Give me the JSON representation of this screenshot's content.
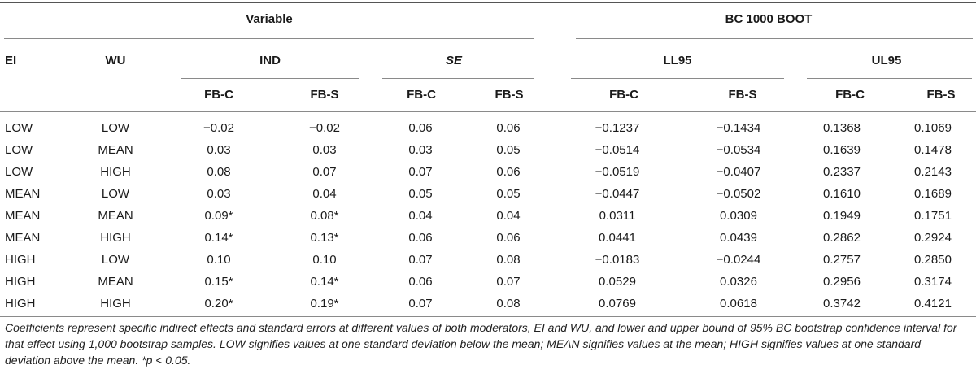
{
  "headers": {
    "variable": "Variable",
    "bc_boot": "BC 1000 BOOT",
    "ei": "EI",
    "wu": "WU",
    "ind": "IND",
    "se": "SE",
    "ll95": "LL95",
    "ul95": "UL95",
    "fbc": "FB-C",
    "fbs": "FB-S"
  },
  "rows": [
    {
      "ei": "LOW",
      "wu": "LOW",
      "ind_c": "−0.02",
      "ind_s": "−0.02",
      "se_c": "0.06",
      "se_s": "0.06",
      "ll_c": "−0.1237",
      "ll_s": "−0.1434",
      "ul_c": "0.1368",
      "ul_s": "0.1069"
    },
    {
      "ei": "LOW",
      "wu": "MEAN",
      "ind_c": "0.03",
      "ind_s": "0.03",
      "se_c": "0.03",
      "se_s": "0.05",
      "ll_c": "−0.0514",
      "ll_s": "−0.0534",
      "ul_c": "0.1639",
      "ul_s": "0.1478"
    },
    {
      "ei": "LOW",
      "wu": "HIGH",
      "ind_c": "0.08",
      "ind_s": "0.07",
      "se_c": "0.07",
      "se_s": "0.06",
      "ll_c": "−0.0519",
      "ll_s": "−0.0407",
      "ul_c": "0.2337",
      "ul_s": "0.2143"
    },
    {
      "ei": "MEAN",
      "wu": "LOW",
      "ind_c": "0.03",
      "ind_s": "0.04",
      "se_c": "0.05",
      "se_s": "0.05",
      "ll_c": "−0.0447",
      "ll_s": "−0.0502",
      "ul_c": "0.1610",
      "ul_s": "0.1689"
    },
    {
      "ei": "MEAN",
      "wu": "MEAN",
      "ind_c": "0.09*",
      "ind_s": "0.08*",
      "se_c": "0.04",
      "se_s": "0.04",
      "ll_c": "0.0311",
      "ll_s": "0.0309",
      "ul_c": "0.1949",
      "ul_s": "0.1751"
    },
    {
      "ei": "MEAN",
      "wu": "HIGH",
      "ind_c": "0.14*",
      "ind_s": "0.13*",
      "se_c": "0.06",
      "se_s": "0.06",
      "ll_c": "0.0441",
      "ll_s": "0.0439",
      "ul_c": "0.2862",
      "ul_s": "0.2924"
    },
    {
      "ei": "HIGH",
      "wu": "LOW",
      "ind_c": "0.10",
      "ind_s": "0.10",
      "se_c": "0.07",
      "se_s": "0.08",
      "ll_c": "−0.0183",
      "ll_s": "−0.0244",
      "ul_c": "0.2757",
      "ul_s": "0.2850"
    },
    {
      "ei": "HIGH",
      "wu": "MEAN",
      "ind_c": "0.15*",
      "ind_s": "0.14*",
      "se_c": "0.06",
      "se_s": "0.07",
      "ll_c": "0.0529",
      "ll_s": "0.0326",
      "ul_c": "0.2956",
      "ul_s": "0.3174"
    },
    {
      "ei": "HIGH",
      "wu": "HIGH",
      "ind_c": "0.20*",
      "ind_s": "0.19*",
      "se_c": "0.07",
      "se_s": "0.08",
      "ll_c": "0.0769",
      "ll_s": "0.0618",
      "ul_c": "0.3742",
      "ul_s": "0.4121"
    }
  ],
  "footnote": "Coefficients represent specific indirect effects and standard errors at different values of both moderators, EI and WU, and lower and upper bound of 95% BC bootstrap confidence interval for that effect using 1,000 bootstrap samples. LOW signifies values at one standard deviation below the mean; MEAN signifies values at the mean; HIGH signifies values at one standard deviation above the mean. *p < 0.05."
}
